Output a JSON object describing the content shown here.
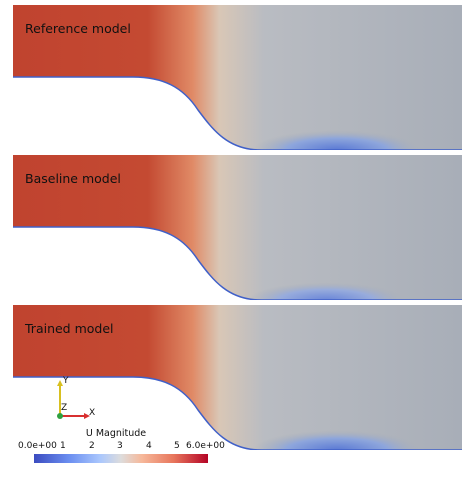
{
  "panels": [
    {
      "label": "Reference model"
    },
    {
      "label": "Baseline model"
    },
    {
      "label": "Trained model"
    }
  ],
  "axes": {
    "y_label": "Y",
    "z_label": "Z",
    "x_label": "X"
  },
  "colorbar": {
    "title": "U Magnitude",
    "ticks": [
      "0.0e+00",
      "1",
      "2",
      "3",
      "4",
      "5",
      "6.0e+00"
    ],
    "range": [
      0,
      6
    ],
    "colormap": [
      "#3b4cc0",
      "#6b8ef0",
      "#aac7fd",
      "#dddcdc",
      "#f6b89a",
      "#e8775d",
      "#b40426"
    ]
  },
  "colors": {
    "fast_flow": "#c0432f",
    "stagnant": "#a8aeb8",
    "slow_flow": "#5a79d4",
    "wall": "#4060c8"
  }
}
